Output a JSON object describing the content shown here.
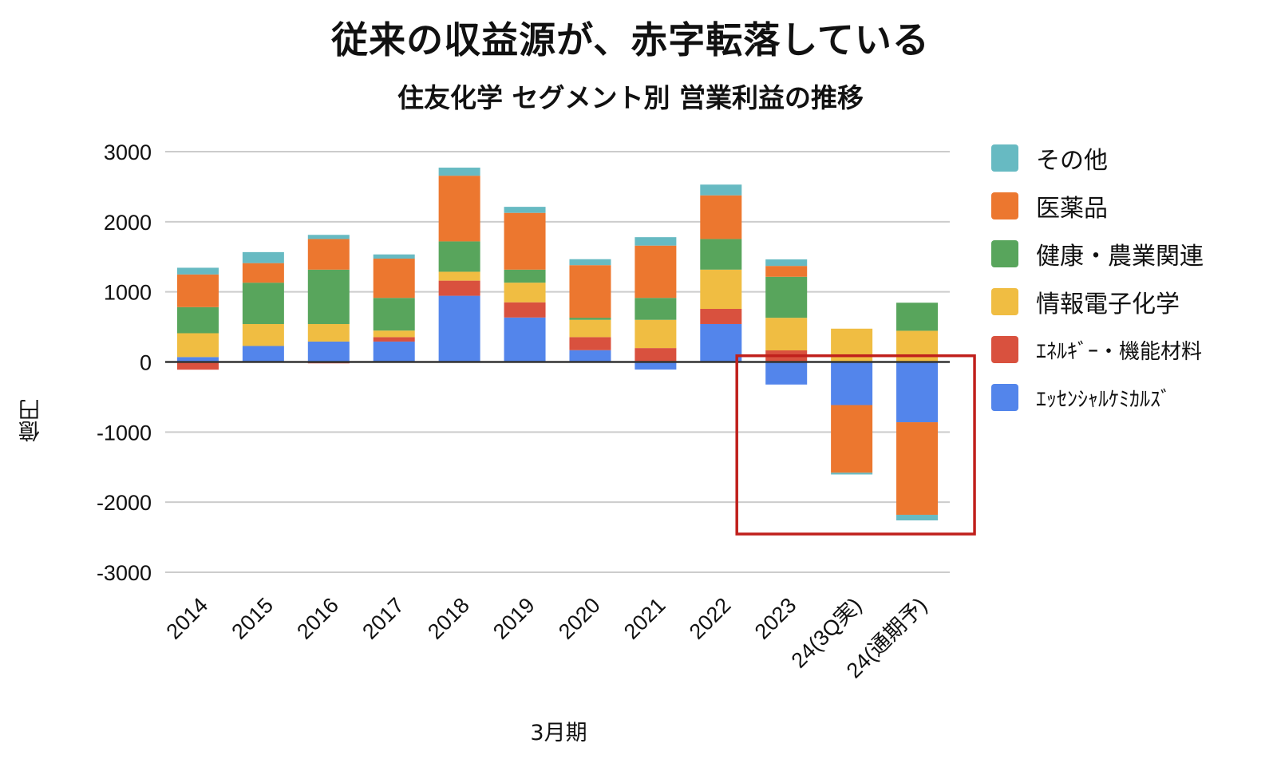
{
  "chart_data": {
    "type": "bar",
    "stacked": true,
    "title": "従来の収益源が、赤字転落している",
    "subtitle": "住友化学 セグメント別 営業利益の推移",
    "xlabel": "3月期",
    "ylabel": "億円",
    "ylim": [
      -3000,
      3000
    ],
    "yticks": [
      3000,
      2000,
      1000,
      0,
      -1000,
      -2000,
      -3000
    ],
    "ytick_labels": [
      "3000",
      "2000",
      "1000",
      "0",
      "-1000",
      "-2000",
      "-3000"
    ],
    "grid": true,
    "legend_position": "right",
    "categories": [
      "2014",
      "2015",
      "2016",
      "2017",
      "2018",
      "2019",
      "2020",
      "2021",
      "2022",
      "2023",
      "24(3Q実)",
      "24(通期予)"
    ],
    "series": [
      {
        "name": "エッセンシャルケミカルズ",
        "color": "#5385EB",
        "values": [
          70,
          228,
          291,
          291,
          944,
          634,
          168,
          -108,
          541,
          -322,
          -615,
          -860
        ]
      },
      {
        "name": "エネルギー・機能材料",
        "color": "#D9513E",
        "values": [
          -110,
          0,
          -20,
          63,
          216,
          217,
          186,
          198,
          216,
          165,
          0,
          0
        ]
      },
      {
        "name": "情報電子化学",
        "color": "#F0BD42",
        "values": [
          340,
          313,
          250,
          94,
          127,
          280,
          247,
          403,
          560,
          465,
          475,
          445
        ]
      },
      {
        "name": "健康・農業関連",
        "color": "#58A55C",
        "values": [
          372,
          590,
          776,
          466,
          433,
          186,
          30,
          313,
          437,
          585,
          0,
          400
        ]
      },
      {
        "name": "医薬品",
        "color": "#EC772F",
        "values": [
          466,
          279,
          437,
          560,
          937,
          810,
          750,
          746,
          623,
          155,
          -965,
          -1320
        ]
      },
      {
        "name": "その他",
        "color": "#67BAC2",
        "values": [
          96,
          157,
          59,
          60,
          115,
          86,
          85,
          120,
          153,
          93,
          -25,
          -80
        ]
      }
    ],
    "annotations": [
      {
        "type": "highlight-box",
        "color": "#C0201C",
        "covers_categories": [
          "2023",
          "24(3Q実)",
          "24(通期予)"
        ],
        "covers_range": [
          -2500,
          100
        ]
      }
    ]
  },
  "legend": {
    "items": [
      {
        "label": "その他",
        "color": "#67BAC2"
      },
      {
        "label": "医薬品",
        "color": "#EC772F"
      },
      {
        "label": "健康・農業関連",
        "color": "#58A55C"
      },
      {
        "label": "情報電子化学",
        "color": "#F0BD42"
      },
      {
        "label": "ｴﾈﾙｷﾞｰ・機能材料",
        "color": "#D9513E"
      },
      {
        "label": "ｴｯｾﾝｼｬﾙｹﾐｶﾙｽﾞ",
        "color": "#5385EB"
      }
    ]
  }
}
